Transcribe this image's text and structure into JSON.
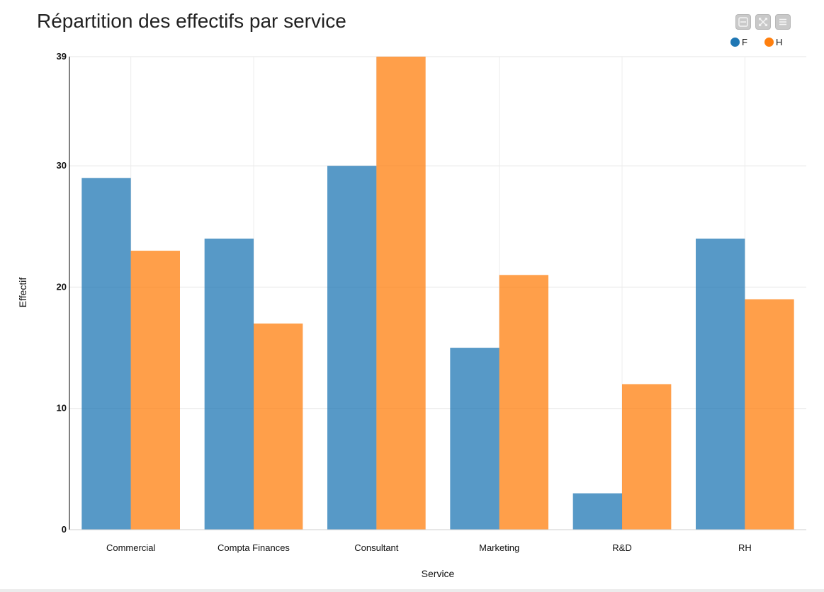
{
  "chart_data": {
    "type": "bar",
    "title": "Répartition des effectifs par service",
    "xlabel": "Service",
    "ylabel": "Effectif",
    "categories": [
      "Commercial",
      "Compta Finances",
      "Consultant",
      "Marketing",
      "R&D",
      "RH"
    ],
    "series": [
      {
        "name": "F",
        "color": "#1f77b4",
        "values": [
          29,
          24,
          30,
          15,
          3,
          24
        ]
      },
      {
        "name": "H",
        "color": "#ff7f0e",
        "values": [
          23,
          17,
          39,
          21,
          12,
          19
        ]
      }
    ],
    "ylim": [
      0,
      39
    ],
    "yticks": [
      0,
      10,
      20,
      30,
      39
    ],
    "grid": true,
    "legend": "top-right"
  },
  "toolbar": {
    "icons": [
      "minus-box-icon",
      "expand-icon",
      "menu-icon"
    ]
  }
}
